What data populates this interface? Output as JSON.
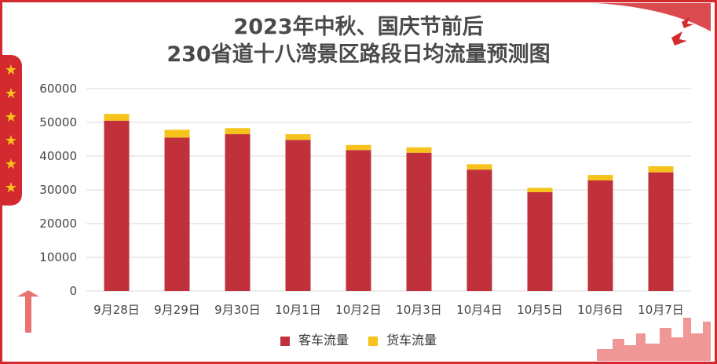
{
  "chart_data": {
    "type": "bar",
    "stacked": true,
    "title_line1": "2023年中秋、国庆节前后",
    "title_line2": "230省道十八湾景区路段日均流量预测图",
    "categories": [
      "9月28日",
      "9月29日",
      "9月30日",
      "10月1日",
      "10月2日",
      "10月3日",
      "10月4日",
      "10月5日",
      "10月6日",
      "10月7日"
    ],
    "series": [
      {
        "name": "客车流量",
        "color": "#c0313b",
        "values": [
          50500,
          45500,
          46500,
          44800,
          41800,
          41000,
          36000,
          29300,
          32800,
          35200
        ]
      },
      {
        "name": "货车流量",
        "color": "#f6c21c",
        "values": [
          2000,
          2300,
          1800,
          1700,
          1500,
          1600,
          1600,
          1300,
          1600,
          1800
        ]
      }
    ],
    "ylim": [
      0,
      60000
    ],
    "yticks": [
      0,
      10000,
      20000,
      30000,
      40000,
      50000,
      60000
    ],
    "grid": true,
    "legend_position": "bottom"
  },
  "decor": {
    "stars": [
      "★",
      "★",
      "★",
      "★",
      "★",
      "★"
    ]
  }
}
